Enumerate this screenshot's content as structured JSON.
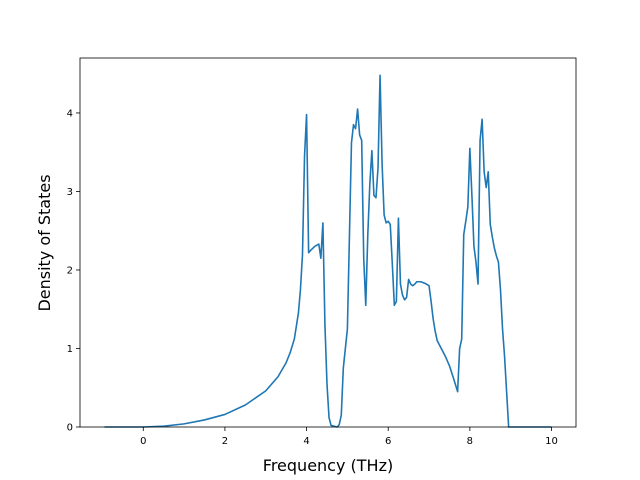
{
  "chart_data": {
    "type": "line",
    "title": "",
    "xlabel": "Frequency (THz)",
    "ylabel": "Density of States",
    "xlim": [
      -1.55,
      10.6
    ],
    "ylim": [
      0,
      4.7
    ],
    "x_ticks": [
      0,
      2,
      4,
      6,
      8,
      10
    ],
    "y_ticks": [
      0,
      1,
      2,
      3,
      4
    ],
    "grid": false,
    "legend": "none",
    "line_color": "#1f77b4",
    "series": [
      {
        "x": [
          -0.95,
          0.0,
          0.5,
          1.0,
          1.5,
          2.0,
          2.5,
          3.0,
          3.3,
          3.5,
          3.6,
          3.7,
          3.8,
          3.85,
          3.9,
          3.95,
          4.0,
          4.05,
          4.1,
          4.2,
          4.3,
          4.35,
          4.4,
          4.45,
          4.5,
          4.55,
          4.6,
          4.75,
          4.8,
          4.85,
          4.9,
          5.0,
          5.1,
          5.15,
          5.2,
          5.25,
          5.3,
          5.35,
          5.4,
          5.45,
          5.5,
          5.55,
          5.6,
          5.65,
          5.7,
          5.75,
          5.8,
          5.85,
          5.9,
          5.95,
          6.0,
          6.05,
          6.1,
          6.15,
          6.2,
          6.25,
          6.3,
          6.35,
          6.4,
          6.45,
          6.5,
          6.55,
          6.6,
          6.65,
          6.7,
          6.8,
          6.9,
          7.0,
          7.05,
          7.1,
          7.15,
          7.2,
          7.3,
          7.4,
          7.5,
          7.6,
          7.7,
          7.75,
          7.8,
          7.85,
          7.9,
          7.95,
          8.0,
          8.05,
          8.1,
          8.15,
          8.2,
          8.25,
          8.3,
          8.35,
          8.4,
          8.45,
          8.5,
          8.55,
          8.6,
          8.65,
          8.7,
          8.75,
          8.8,
          8.85,
          8.9,
          8.95,
          9.0,
          9.05,
          9.1,
          9.15,
          9.2,
          10.0
        ],
        "y": [
          0,
          0,
          0.01,
          0.04,
          0.09,
          0.16,
          0.28,
          0.46,
          0.64,
          0.82,
          0.95,
          1.12,
          1.45,
          1.75,
          2.2,
          3.45,
          3.98,
          2.22,
          2.25,
          2.3,
          2.33,
          2.15,
          2.6,
          1.3,
          0.55,
          0.12,
          0.02,
          0.0,
          0.03,
          0.15,
          0.75,
          1.25,
          3.62,
          3.85,
          3.8,
          4.05,
          3.72,
          3.65,
          2.15,
          1.55,
          2.45,
          3.1,
          3.52,
          2.95,
          2.92,
          3.3,
          4.48,
          3.35,
          2.7,
          2.6,
          2.62,
          2.58,
          2.08,
          1.55,
          1.6,
          2.66,
          1.82,
          1.68,
          1.62,
          1.65,
          1.88,
          1.82,
          1.8,
          1.82,
          1.85,
          1.85,
          1.83,
          1.8,
          1.6,
          1.38,
          1.22,
          1.1,
          1.0,
          0.9,
          0.78,
          0.62,
          0.45,
          1.0,
          1.12,
          2.45,
          2.62,
          2.8,
          3.55,
          2.95,
          2.3,
          2.1,
          1.82,
          3.65,
          3.92,
          3.25,
          3.05,
          3.25,
          2.58,
          2.42,
          2.28,
          2.18,
          2.1,
          1.75,
          1.25,
          0.9,
          0.45,
          0.0,
          0.0,
          0.0,
          0.0,
          0.0,
          0.0,
          0.0
        ]
      }
    ]
  }
}
